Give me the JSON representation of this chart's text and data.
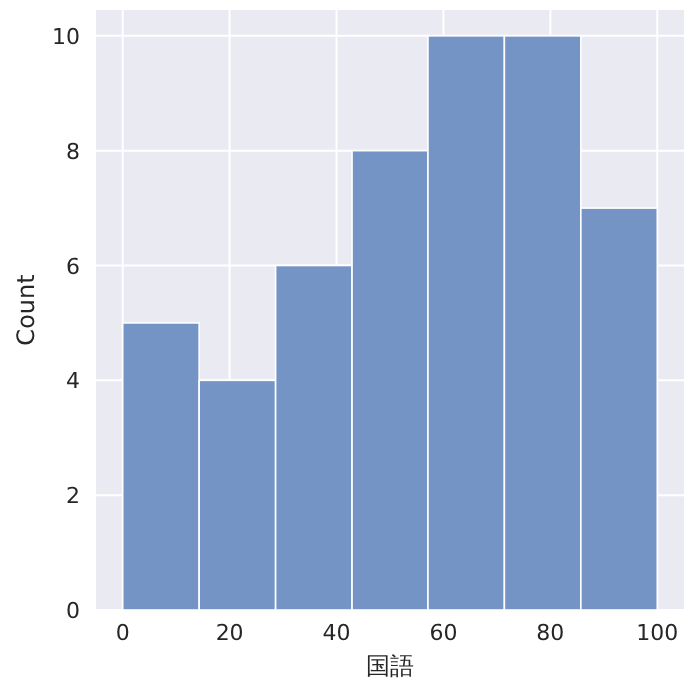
{
  "chart_data": {
    "type": "histogram",
    "bins": [
      0,
      14.3,
      28.6,
      42.9,
      57.1,
      71.4,
      85.7,
      100
    ],
    "values": [
      5,
      4,
      6,
      8,
      10,
      10,
      7
    ],
    "color": "#7494c6",
    "xlabel": "国語",
    "ylabel": "Count",
    "xlim": [
      -5,
      105
    ],
    "ylim": [
      0,
      10.45
    ],
    "xticks": [
      0,
      20,
      40,
      60,
      80,
      100
    ],
    "yticks": [
      0,
      2,
      4,
      6,
      8,
      10
    ],
    "grid": true
  }
}
